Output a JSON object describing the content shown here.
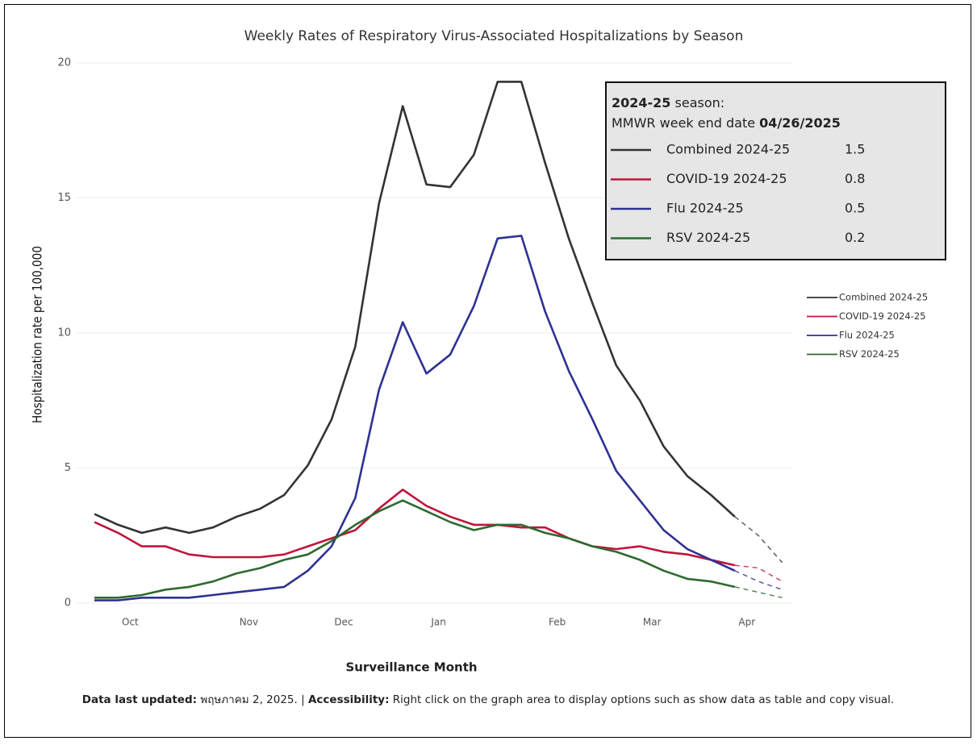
{
  "chart_data": {
    "type": "line",
    "title": "Weekly Rates of Respiratory Virus-Associated Hospitalizations by Season",
    "x_label": "Surveillance Month",
    "y_label": "Hospitalization rate per 100,000",
    "categories": [
      null,
      "Oct",
      null,
      null,
      null,
      null,
      "Nov",
      null,
      null,
      null,
      "Dec",
      null,
      null,
      null,
      "Jan",
      null,
      null,
      null,
      null,
      "Feb",
      null,
      null,
      null,
      "Mar",
      null,
      null,
      null,
      "Apr",
      null,
      null
    ],
    "ylim": [
      0,
      20
    ],
    "yticks": [
      0,
      5,
      10,
      15,
      20
    ],
    "grid": true,
    "dashed_after": 27,
    "legend": "right",
    "series": [
      {
        "name": "Combined 2024-25",
        "color": "#333333",
        "values": [
          3.3,
          2.9,
          2.6,
          2.8,
          2.6,
          2.8,
          3.2,
          3.5,
          4.0,
          5.1,
          6.8,
          9.5,
          14.8,
          18.4,
          15.5,
          15.4,
          16.6,
          19.3,
          19.3,
          16.3,
          13.5,
          11.1,
          8.8,
          7.5,
          5.8,
          4.7,
          4.0,
          3.2,
          2.5,
          1.5
        ]
      },
      {
        "name": "COVID-19 2024-25",
        "color": "#c0143c",
        "values": [
          3.0,
          2.6,
          2.1,
          2.1,
          1.8,
          1.7,
          1.7,
          1.7,
          1.8,
          2.1,
          2.4,
          2.7,
          3.5,
          4.2,
          3.6,
          3.2,
          2.9,
          2.9,
          2.8,
          2.8,
          2.4,
          2.1,
          2.0,
          2.1,
          1.9,
          1.8,
          1.6,
          1.4,
          1.3,
          0.8
        ]
      },
      {
        "name": "Flu 2024-25",
        "color": "#2e3192",
        "values": [
          0.1,
          0.1,
          0.2,
          0.2,
          0.2,
          0.3,
          0.4,
          0.5,
          0.6,
          1.2,
          2.1,
          3.9,
          7.9,
          10.4,
          8.5,
          9.2,
          11.0,
          13.5,
          13.6,
          10.8,
          8.6,
          6.8,
          4.9,
          3.8,
          2.7,
          2.0,
          1.6,
          1.2,
          0.8,
          0.5
        ]
      },
      {
        "name": "RSV 2024-25",
        "color": "#2d6a2f",
        "values": [
          0.2,
          0.2,
          0.3,
          0.5,
          0.6,
          0.8,
          1.1,
          1.3,
          1.6,
          1.8,
          2.3,
          2.9,
          3.4,
          3.8,
          3.4,
          3.0,
          2.7,
          2.9,
          2.9,
          2.6,
          2.4,
          2.1,
          1.9,
          1.6,
          1.2,
          0.9,
          0.8,
          0.6,
          0.4,
          0.2
        ]
      }
    ],
    "tooltip": {
      "season": "2024-25",
      "season_suffix": "season:",
      "date_label": "MMWR week end date",
      "date": "04/26/2025",
      "index": 29
    }
  },
  "footer": {
    "updated_label": "Data last updated:",
    "updated": "พฤษภาคม 2, 2025.",
    "separator": "|",
    "accessibility_label": "Accessibility:",
    "accessibility": "Right click on the graph area to display options such as show data as table and copy visual."
  }
}
